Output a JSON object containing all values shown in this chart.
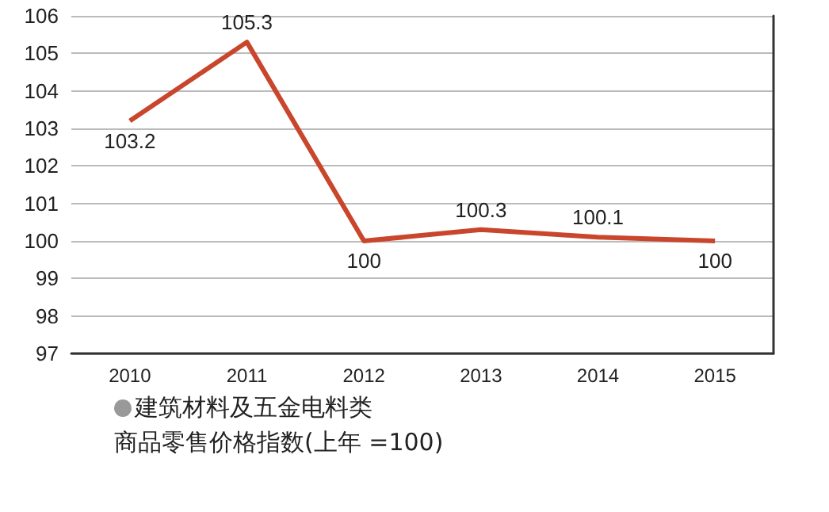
{
  "chart_data": {
    "type": "line",
    "categories": [
      "2010",
      "2011",
      "2012",
      "2013",
      "2014",
      "2015"
    ],
    "series": [
      {
        "color": "#c9462c",
        "values": [
          103.2,
          105.3,
          100,
          100.3,
          100.1,
          100
        ]
      }
    ],
    "ylim": [
      97,
      106
    ],
    "yticks": [
      97,
      98,
      99,
      100,
      101,
      102,
      103,
      104,
      105,
      106
    ],
    "grid": "y",
    "data_labels": true,
    "marker": "none",
    "line_style": "solid",
    "annotations": [
      "建筑材料及五金电料类",
      "商品零售价格指数(上年 =100)"
    ]
  }
}
